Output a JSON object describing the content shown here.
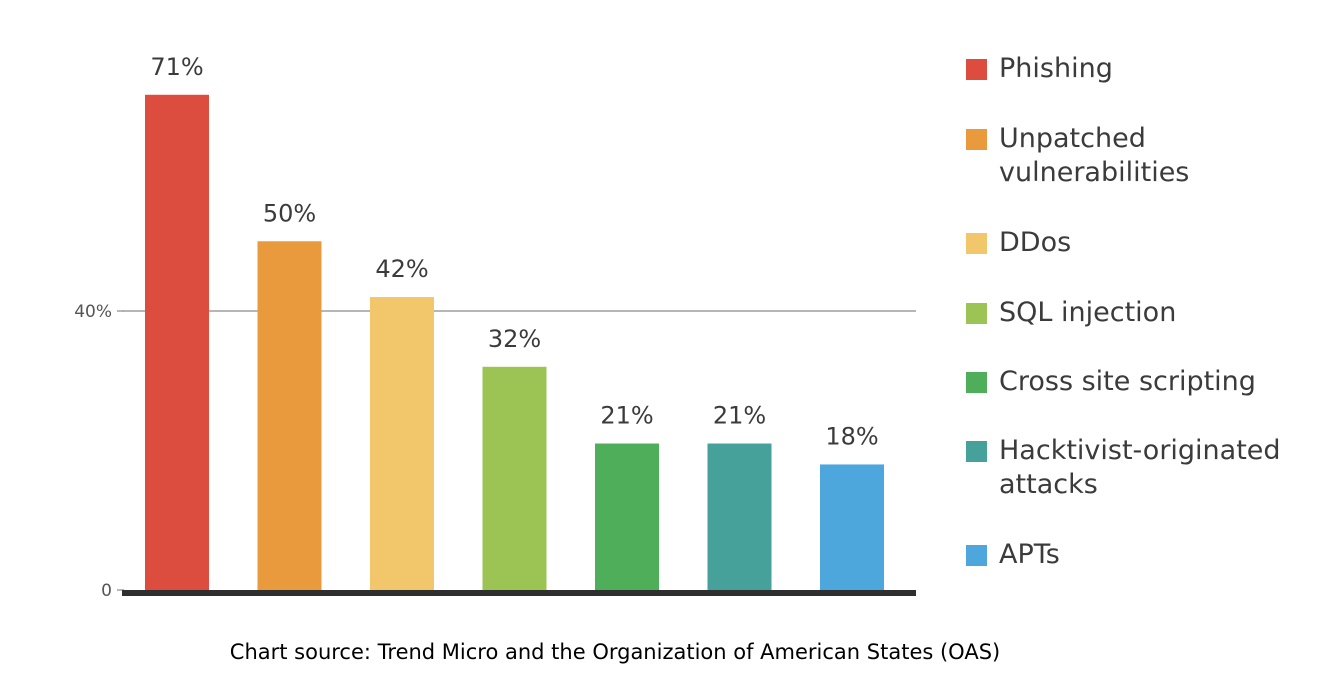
{
  "chart_data": {
    "type": "bar",
    "categories": [
      "Phishing",
      "Unpatched vulnerabilities",
      "DDos",
      "SQL injection",
      "Cross site scripting",
      "Hacktivist-originated attacks",
      "APTs"
    ],
    "values": [
      71,
      50,
      42,
      32,
      21,
      21,
      18
    ],
    "data_labels": [
      "71%",
      "50%",
      "42%",
      "32%",
      "21%",
      "21%",
      "18%"
    ],
    "colors": [
      "#dc4c3f",
      "#e89a3c",
      "#f2c66a",
      "#9bc454",
      "#4fae5a",
      "#46a19b",
      "#4da7dd"
    ],
    "legend_labels": [
      "Phishing",
      "Unpatched\nvulnerabilities",
      "DDos",
      "SQL injection",
      "Cross site scripting",
      "Hacktivist-originated\nattacks",
      "APTs"
    ],
    "y_ticks": [
      {
        "value": 0,
        "label": "0"
      },
      {
        "value": 40,
        "label": "40%"
      }
    ],
    "ylim": [
      0,
      80
    ],
    "reference_line": 40,
    "legend_position": "right"
  },
  "source_text": "Chart source: Trend Micro and the Organization of American States (OAS)"
}
